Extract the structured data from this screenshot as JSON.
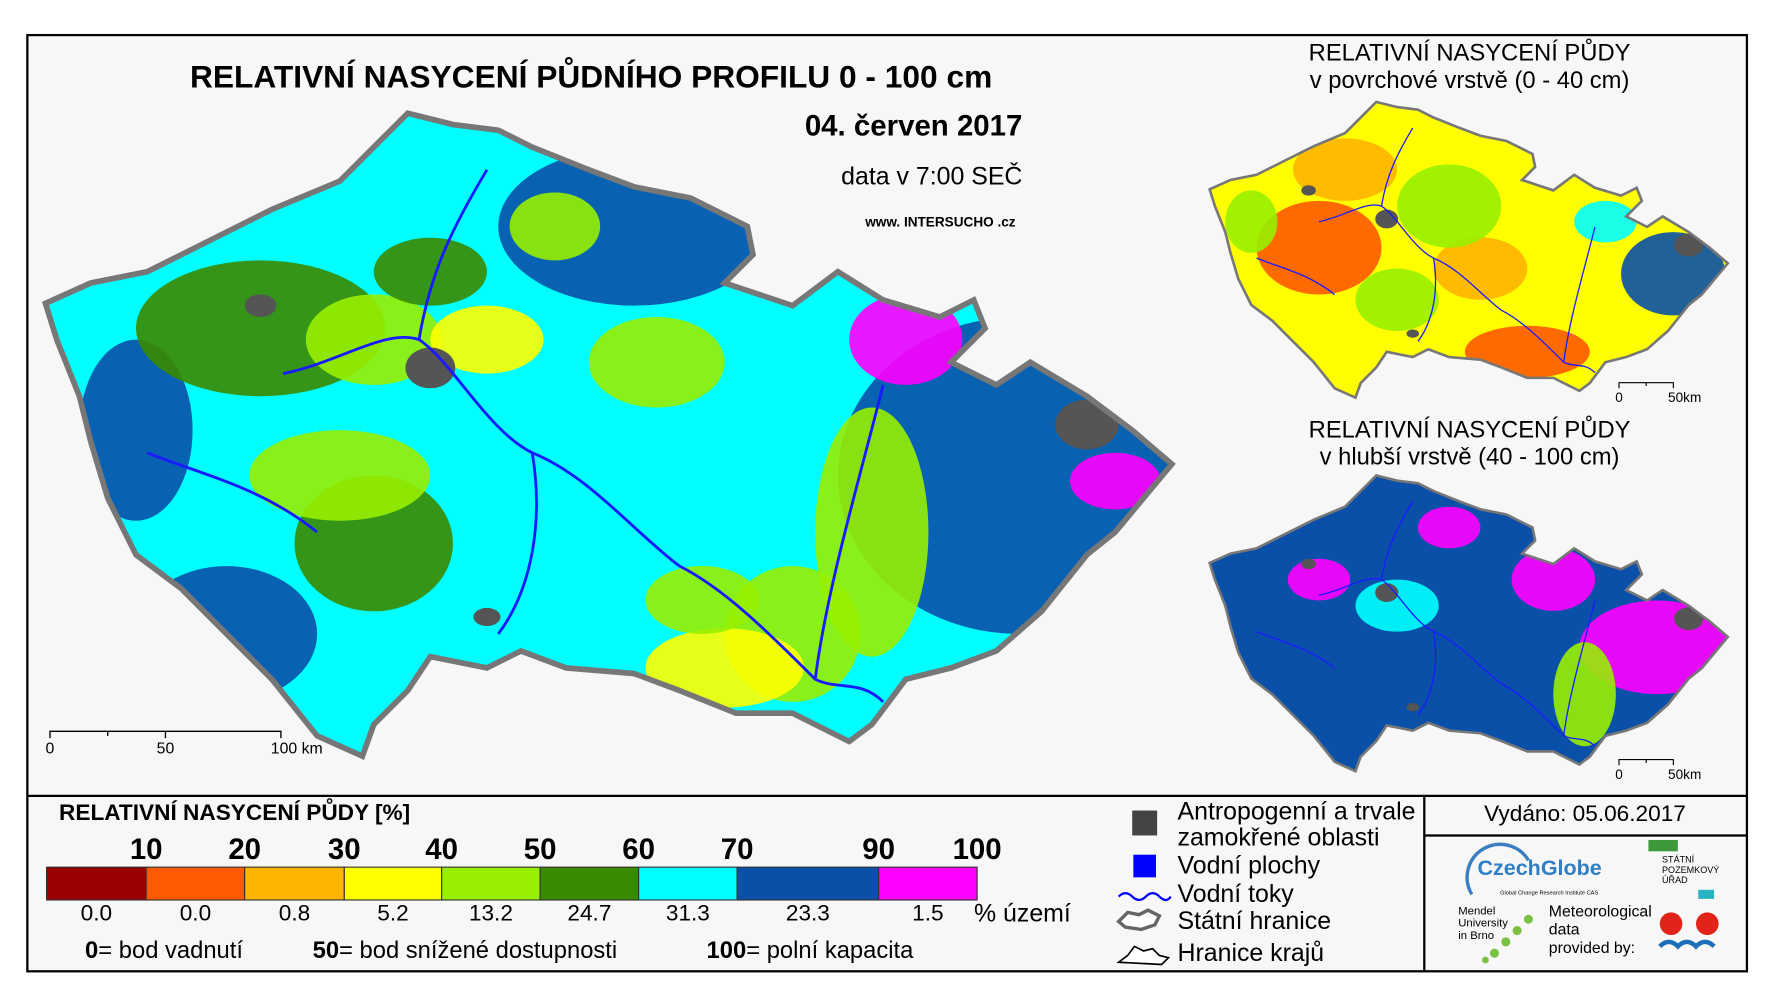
{
  "header": {
    "title": "RELATIVNÍ NASYCENÍ PŮDNÍHO PROFILU 0 - 100 cm",
    "date": "04. červen 2017",
    "data_time": "data v 7:00 SEČ",
    "website": "www. INTERSUCHO .cz"
  },
  "main_map": {
    "scale_labels": [
      "0",
      "50",
      "100 km"
    ]
  },
  "surface_map": {
    "title": "RELATIVNÍ NASYCENÍ PŮDY",
    "subtitle": "v povrchové vrstvě (0 - 40 cm)",
    "scale_labels": [
      "0",
      "50km"
    ]
  },
  "deep_map": {
    "title": "RELATIVNÍ NASYCENÍ PŮDY",
    "subtitle": "v hlubší vrstvě (40 - 100 cm)",
    "scale_labels": [
      "0",
      "50km"
    ]
  },
  "legend": {
    "title": "RELATIVNÍ NASYCENÍ PŮDY [%]",
    "thresholds": [
      "10",
      "20",
      "30",
      "40",
      "50",
      "60",
      "70",
      "90",
      "100"
    ],
    "colors": [
      "#990000",
      "#ff5a00",
      "#ffb400",
      "#ffff00",
      "#98f000",
      "#3a8a00",
      "#00ffff",
      "#0a50a8",
      "#ff00ff"
    ],
    "shares": [
      "0.0",
      "0.0",
      "0.8",
      "5.2",
      "13.2",
      "24.7",
      "31.3",
      "23.3",
      "1.5"
    ],
    "shares_unit": "% území",
    "definitions": [
      {
        "value": "0",
        "text": "= bod vadnutí"
      },
      {
        "value": "50",
        "text": "= bod snížené dostupnosti"
      },
      {
        "value": "100",
        "text": "= polní kapacita"
      }
    ]
  },
  "symbols": [
    [
      "Antropogenní a trvale",
      "zamokřené oblasti"
    ],
    [
      "Vodní plochy"
    ],
    [
      "Vodní toky"
    ],
    [
      "Státní hranice"
    ],
    [
      "Hranice krajů"
    ]
  ],
  "issued": "Vydáno: 05.06.2017",
  "logos": {
    "czechglobe": "CzechGlobe",
    "czechglobe_sub": "Global Change Research Institute CAS",
    "spu": [
      "STÁTNÍ",
      "POZEMKOVÝ",
      "ÚŘAD"
    ],
    "mendel": [
      "Mendel",
      "University",
      "in Brno"
    ],
    "meteo": [
      "Meteorological",
      "data",
      "provided by:"
    ]
  }
}
